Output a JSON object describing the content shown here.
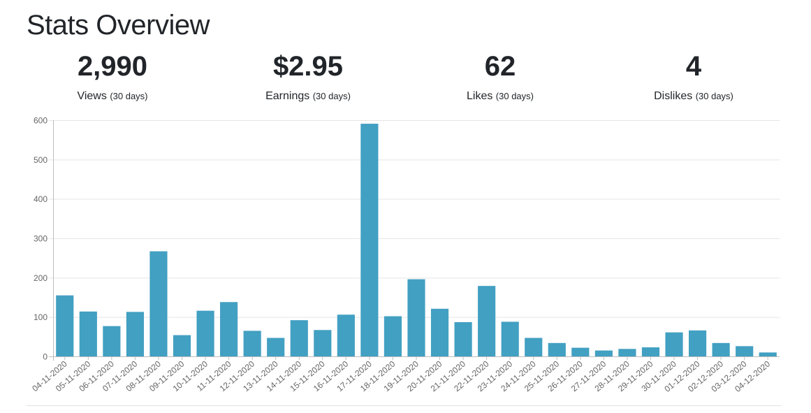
{
  "header": {
    "title": "Stats Overview"
  },
  "stats": [
    {
      "value": "2,990",
      "label": "Views",
      "period": "(30 days)"
    },
    {
      "value": "$2.95",
      "label": "Earnings",
      "period": "(30 days)"
    },
    {
      "value": "62",
      "label": "Likes",
      "period": "(30 days)"
    },
    {
      "value": "4",
      "label": "Dislikes",
      "period": "(30 days)"
    }
  ],
  "colors": {
    "bar": "#42a0c2",
    "grid": "#e5e5e5",
    "axis": "#666666",
    "text": "#212529"
  },
  "chart_data": {
    "type": "bar",
    "categories": [
      "04-11-2020",
      "05-11-2020",
      "06-11-2020",
      "07-11-2020",
      "08-11-2020",
      "09-11-2020",
      "10-11-2020",
      "11-11-2020",
      "12-11-2020",
      "13-11-2020",
      "14-11-2020",
      "15-11-2020",
      "16-11-2020",
      "17-11-2020",
      "18-11-2020",
      "19-11-2020",
      "20-11-2020",
      "21-11-2020",
      "22-11-2020",
      "23-11-2020",
      "24-11-2020",
      "25-11-2020",
      "26-11-2020",
      "27-11-2020",
      "28-11-2020",
      "29-11-2020",
      "30-11-2020",
      "01-12-2020",
      "02-12-2020",
      "03-12-2020",
      "04-12-2020"
    ],
    "values": [
      155,
      114,
      77,
      113,
      267,
      54,
      116,
      138,
      65,
      47,
      92,
      67,
      106,
      591,
      102,
      196,
      121,
      87,
      179,
      88,
      47,
      34,
      22,
      15,
      19,
      23,
      61,
      66,
      34,
      26,
      10
    ],
    "ylim": [
      0,
      600
    ],
    "yticks": [
      0,
      100,
      200,
      300,
      400,
      500,
      600
    ],
    "grid": true
  }
}
